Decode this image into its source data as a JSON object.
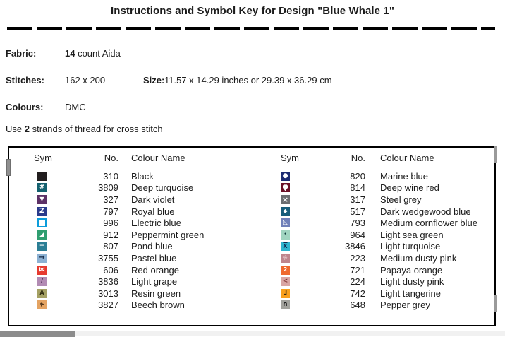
{
  "title": "Instructions and Symbol Key for Design \"Blue Whale 1\"",
  "info": {
    "fabric_label": "Fabric:",
    "fabric_count": "14",
    "fabric_rest": " count Aida",
    "stitches_label": "Stitches:",
    "stitches_value": "162 x 200",
    "size_label": "Size:",
    "size_value": "11.57 x 14.29 inches or 29.39 x 36.29 cm",
    "colours_label": "Colours:",
    "colours_value": "DMC",
    "strands_prefix": "Use ",
    "strands_count": "2",
    "strands_suffix": " strands of thread for cross stitch"
  },
  "key_table": {
    "headers": {
      "sym": "Sym",
      "no": "No.",
      "name": "Colour Name"
    },
    "left_rows": [
      {
        "no": "310",
        "name": "Black",
        "sym_bg": "#221e1f",
        "glyph": "",
        "glyph_color": "#221e1f"
      },
      {
        "no": "3809",
        "name": "Deep turquoise",
        "sym_bg": "#14616f",
        "glyph": "#",
        "glyph_color": "#ffffff",
        "fs": 9
      },
      {
        "no": "327",
        "name": "Dark violet",
        "sym_bg": "#5d3166",
        "glyph": "▼",
        "glyph_color": "#ffffff",
        "fs": 8
      },
      {
        "no": "797",
        "name": "Royal blue",
        "sym_bg": "#2a3b8c",
        "glyph": "Z",
        "glyph_color": "#ffffff",
        "fs": 10
      },
      {
        "no": "996",
        "name": "Electric blue",
        "sym_bg": "#ffffff",
        "sym_border": "#0c9ddb",
        "glyph": "",
        "glyph_color": "#ffffff"
      },
      {
        "no": "912",
        "name": "Peppermint green",
        "sym_bg": "#2f9e70",
        "glyph": "◢",
        "glyph_color": "#ffffff",
        "fs": 9
      },
      {
        "no": "807",
        "name": "Pond blue",
        "sym_bg": "#2b7e95",
        "glyph": "−",
        "glyph_color": "#ffffff",
        "fs": 9
      },
      {
        "no": "3755",
        "name": "Pastel blue",
        "sym_bg": "#8cb1d3",
        "glyph": "→",
        "glyph_color": "#10233f",
        "fs": 10
      },
      {
        "no": "606",
        "name": "Red orange",
        "sym_bg": "#e63a2f",
        "glyph": "⋈",
        "glyph_color": "#ffffff",
        "fs": 9
      },
      {
        "no": "3836",
        "name": "Light grape",
        "sym_bg": "#b28bb3",
        "glyph": "/",
        "glyph_color": "#4a2f52",
        "fs": 9
      },
      {
        "no": "3013",
        "name": "Resin green",
        "sym_bg": "#a5a164",
        "glyph": "A",
        "glyph_color": "#332f12",
        "fs": 8
      },
      {
        "no": "3827",
        "name": "Beech brown",
        "sym_bg": "#e4a362",
        "glyph": "ʌ",
        "glyph_color": "#513317",
        "gclass": "rot315",
        "fs": 9
      }
    ],
    "right_rows": [
      {
        "no": "820",
        "name": "Marine blue",
        "sym_bg": "#1c2b72",
        "glyph": "●",
        "glyph_color": "#ffffff",
        "fs": 9
      },
      {
        "no": "814",
        "name": "Deep wine red",
        "sym_bg": "#6c1127",
        "glyph": "",
        "glyph_color": "#ffffff",
        "gclass": "drop"
      },
      {
        "no": "317",
        "name": "Steel grey",
        "sym_bg": "#6b6d70",
        "glyph": "×",
        "glyph_color": "#ffffff",
        "fs": 11
      },
      {
        "no": "517",
        "name": "Dark wedgewood blue",
        "sym_bg": "#175d7b",
        "glyph": "◆",
        "glyph_color": "#ffffff",
        "fs": 8
      },
      {
        "no": "793",
        "name": "Medium cornflower blue",
        "sym_bg": "#7080b9",
        "glyph": "◺",
        "glyph_color": "#ffffff",
        "fs": 9
      },
      {
        "no": "964",
        "name": "Light sea green",
        "sym_bg": "#a1d5c0",
        "glyph": "•",
        "glyph_color": "#0f3a3a",
        "fs": 6
      },
      {
        "no": "3846",
        "name": "Light turquoise",
        "sym_bg": "#2fb3ce",
        "glyph": "X",
        "glyph_color": "#0e2a52",
        "gclass": "hourglass",
        "fs": 8
      },
      {
        "no": "223",
        "name": "Medium dusty pink",
        "sym_bg": "#bf858c",
        "glyph": "≡",
        "glyph_color": "#e9ced1",
        "gclass": "rot325",
        "fs": 8
      },
      {
        "no": "721",
        "name": "Papaya orange",
        "sym_bg": "#ef692e",
        "glyph": "2",
        "glyph_color": "#ffffff",
        "fs": 8
      },
      {
        "no": "224",
        "name": "Light dusty pink",
        "sym_bg": "#d9a5a3",
        "glyph": "<",
        "glyph_color": "#7a2e2e",
        "fs": 9
      },
      {
        "no": "742",
        "name": "Light tangerine",
        "sym_bg": "#f9a01e",
        "glyph": "L",
        "glyph_color": "#332a18",
        "gclass": "flipx",
        "fs": 8
      },
      {
        "no": "648",
        "name": "Pepper grey",
        "sym_bg": "#a2a29d",
        "glyph": "∩",
        "glyph_color": "#1c1c1c",
        "fs": 9
      }
    ]
  },
  "scrollbar": {
    "horizontal_thumb": "",
    "left_handle": "",
    "right_segment": ""
  }
}
